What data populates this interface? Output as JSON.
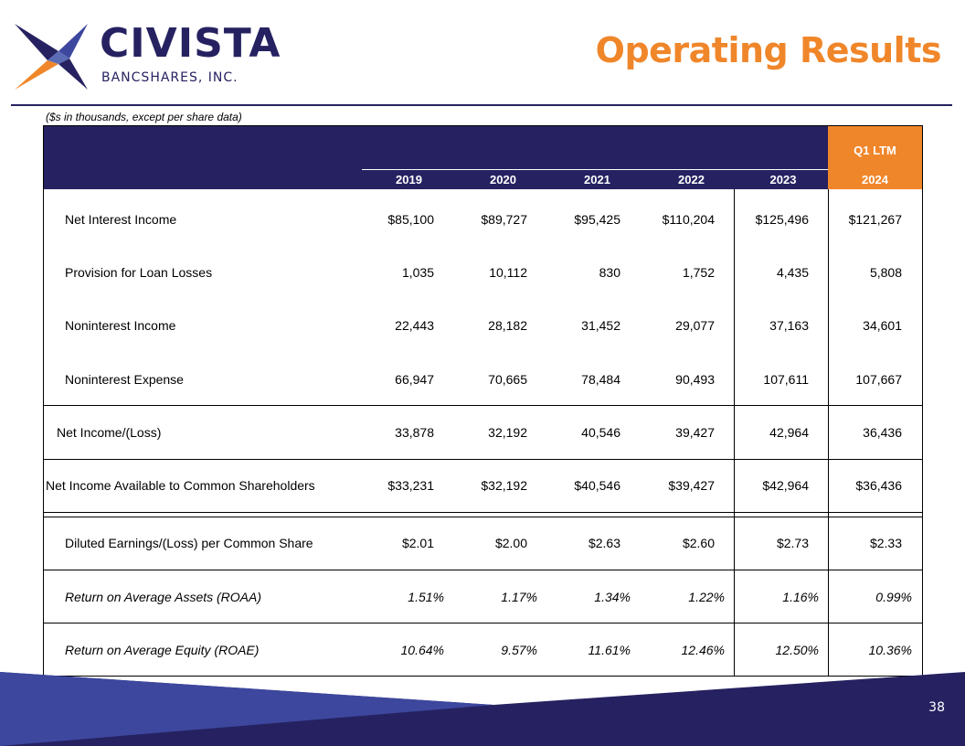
{
  "header": {
    "brand_name": "CIVISTA",
    "brand_sub": "BANCSHARES, INC.",
    "title": "Operating Results"
  },
  "table": {
    "note": "($s in thousands, except per share data)",
    "ltm_label": "Q1 LTM",
    "years": [
      "2019",
      "2020",
      "2021",
      "2022",
      "2023",
      "2024"
    ],
    "rows": [
      {
        "label": "Net Interest Income",
        "values": [
          "$85,100",
          "$89,727",
          "$95,425",
          "$110,204",
          "$125,496",
          "$121,267"
        ]
      },
      {
        "label": "Provision for Loan Losses",
        "values": [
          "1,035",
          "10,112",
          "830",
          "1,752",
          "4,435",
          "5,808"
        ]
      },
      {
        "label": "Noninterest Income",
        "values": [
          "22,443",
          "28,182",
          "31,452",
          "29,077",
          "37,163",
          "34,601"
        ]
      },
      {
        "label": "Noninterest Expense",
        "values": [
          "66,947",
          "70,665",
          "78,484",
          "90,493",
          "107,611",
          "107,667"
        ]
      },
      {
        "label": "Net Income/(Loss)",
        "values": [
          "33,878",
          "32,192",
          "40,546",
          "39,427",
          "42,964",
          "36,436"
        ]
      },
      {
        "label": "Net Income Available to Common Shareholders",
        "values": [
          "$33,231",
          "$32,192",
          "$40,546",
          "$39,427",
          "$42,964",
          "$36,436"
        ]
      },
      {
        "label": "Diluted Earnings/(Loss) per Common Share",
        "values": [
          "$2.01",
          "$2.00",
          "$2.63",
          "$2.60",
          "$2.73",
          "$2.33"
        ]
      },
      {
        "label": "Return on Average Assets (ROAA)",
        "values": [
          "1.51%",
          "1.17%",
          "1.34%",
          "1.22%",
          "1.16%",
          "0.99%"
        ]
      },
      {
        "label": "Return on Average Equity (ROAE)",
        "values": [
          "10.64%",
          "9.57%",
          "11.61%",
          "12.46%",
          "12.50%",
          "10.36%"
        ]
      }
    ]
  },
  "footer": {
    "page_number": "38",
    "colors": {
      "dark": "#262261",
      "light": "#3d479e"
    }
  },
  "colors": {
    "navy": "#262261",
    "orange": "#f0862a"
  }
}
